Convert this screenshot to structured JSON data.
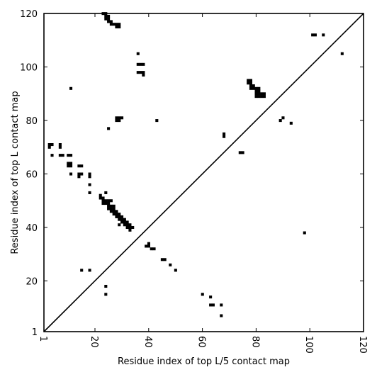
{
  "chart_data": {
    "type": "heatmap",
    "title": "",
    "xlabel": "Residue index of top L/5 contact map",
    "ylabel": "Residue index of top L contact map",
    "xlim": [
      1,
      120
    ],
    "ylim": [
      1,
      120
    ],
    "x_ticks": [
      1,
      20,
      40,
      60,
      80,
      100,
      120
    ],
    "y_ticks": [
      1,
      20,
      40,
      60,
      80,
      100,
      120
    ],
    "grid": false,
    "diagonal": true,
    "colors": {
      "mark": "#000000",
      "background": "#ffffff"
    },
    "contacts": [
      [
        23,
        120
      ],
      [
        24,
        120
      ],
      [
        24,
        119
      ],
      [
        24,
        118
      ],
      [
        25,
        119
      ],
      [
        25,
        118
      ],
      [
        25,
        117
      ],
      [
        26,
        117
      ],
      [
        26,
        116
      ],
      [
        27,
        116
      ],
      [
        28,
        116
      ],
      [
        28,
        115
      ],
      [
        29,
        116
      ],
      [
        29,
        115
      ],
      [
        11,
        92
      ],
      [
        36,
        105
      ],
      [
        36,
        101
      ],
      [
        37,
        101
      ],
      [
        38,
        101
      ],
      [
        36,
        98
      ],
      [
        37,
        98
      ],
      [
        38,
        98
      ],
      [
        38,
        97
      ],
      [
        29,
        81
      ],
      [
        28,
        81
      ],
      [
        28,
        80
      ],
      [
        29,
        80
      ],
      [
        30,
        81
      ],
      [
        43,
        80
      ],
      [
        25,
        77
      ],
      [
        3,
        71
      ],
      [
        3,
        70
      ],
      [
        4,
        71
      ],
      [
        7,
        71
      ],
      [
        7,
        70
      ],
      [
        4,
        67
      ],
      [
        7,
        67
      ],
      [
        8,
        67
      ],
      [
        10,
        67
      ],
      [
        11,
        67
      ],
      [
        10,
        64
      ],
      [
        11,
        64
      ],
      [
        10,
        63
      ],
      [
        11,
        63
      ],
      [
        14,
        63
      ],
      [
        15,
        63
      ],
      [
        14,
        60
      ],
      [
        15,
        60
      ],
      [
        14,
        59
      ],
      [
        11,
        60
      ],
      [
        18,
        60
      ],
      [
        18,
        59
      ],
      [
        18,
        56
      ],
      [
        18,
        53
      ],
      [
        22,
        52
      ],
      [
        24,
        53
      ],
      [
        22,
        51
      ],
      [
        23,
        51
      ],
      [
        23,
        50
      ],
      [
        24,
        50
      ],
      [
        25,
        50
      ],
      [
        26,
        50
      ],
      [
        23,
        49
      ],
      [
        24,
        49
      ],
      [
        25,
        49
      ],
      [
        25,
        48
      ],
      [
        26,
        48
      ],
      [
        27,
        48
      ],
      [
        25,
        47
      ],
      [
        26,
        47
      ],
      [
        27,
        47
      ],
      [
        26,
        46
      ],
      [
        27,
        46
      ],
      [
        28,
        46
      ],
      [
        27,
        45
      ],
      [
        28,
        45
      ],
      [
        29,
        45
      ],
      [
        28,
        44
      ],
      [
        29,
        44
      ],
      [
        30,
        44
      ],
      [
        29,
        43
      ],
      [
        30,
        43
      ],
      [
        31,
        43
      ],
      [
        30,
        42
      ],
      [
        31,
        42
      ],
      [
        32,
        42
      ],
      [
        31,
        41
      ],
      [
        32,
        41
      ],
      [
        33,
        41
      ],
      [
        29,
        41
      ],
      [
        32,
        40
      ],
      [
        33,
        40
      ],
      [
        34,
        40
      ],
      [
        33,
        39
      ],
      [
        40,
        34
      ],
      [
        39,
        33
      ],
      [
        40,
        33
      ],
      [
        41,
        32
      ],
      [
        42,
        32
      ],
      [
        45,
        28
      ],
      [
        46,
        28
      ],
      [
        48,
        26
      ],
      [
        50,
        24
      ],
      [
        15,
        24
      ],
      [
        18,
        24
      ],
      [
        24,
        18
      ],
      [
        24,
        15
      ],
      [
        60,
        15
      ],
      [
        63,
        14
      ],
      [
        63,
        11
      ],
      [
        64,
        11
      ],
      [
        67,
        11
      ],
      [
        67,
        7
      ],
      [
        68,
        75
      ],
      [
        68,
        74
      ],
      [
        74,
        68
      ],
      [
        75,
        68
      ],
      [
        77,
        95
      ],
      [
        78,
        95
      ],
      [
        77,
        94
      ],
      [
        78,
        94
      ],
      [
        78,
        93
      ],
      [
        79,
        93
      ],
      [
        78,
        92
      ],
      [
        79,
        92
      ],
      [
        80,
        92
      ],
      [
        81,
        92
      ],
      [
        80,
        91
      ],
      [
        81,
        91
      ],
      [
        80,
        90
      ],
      [
        81,
        90
      ],
      [
        82,
        90
      ],
      [
        83,
        90
      ],
      [
        80,
        89
      ],
      [
        81,
        89
      ],
      [
        82,
        89
      ],
      [
        83,
        89
      ],
      [
        89,
        80
      ],
      [
        90,
        81
      ],
      [
        93,
        79
      ],
      [
        98,
        38
      ],
      [
        101,
        112
      ],
      [
        102,
        112
      ],
      [
        105,
        112
      ],
      [
        112,
        105
      ]
    ]
  }
}
